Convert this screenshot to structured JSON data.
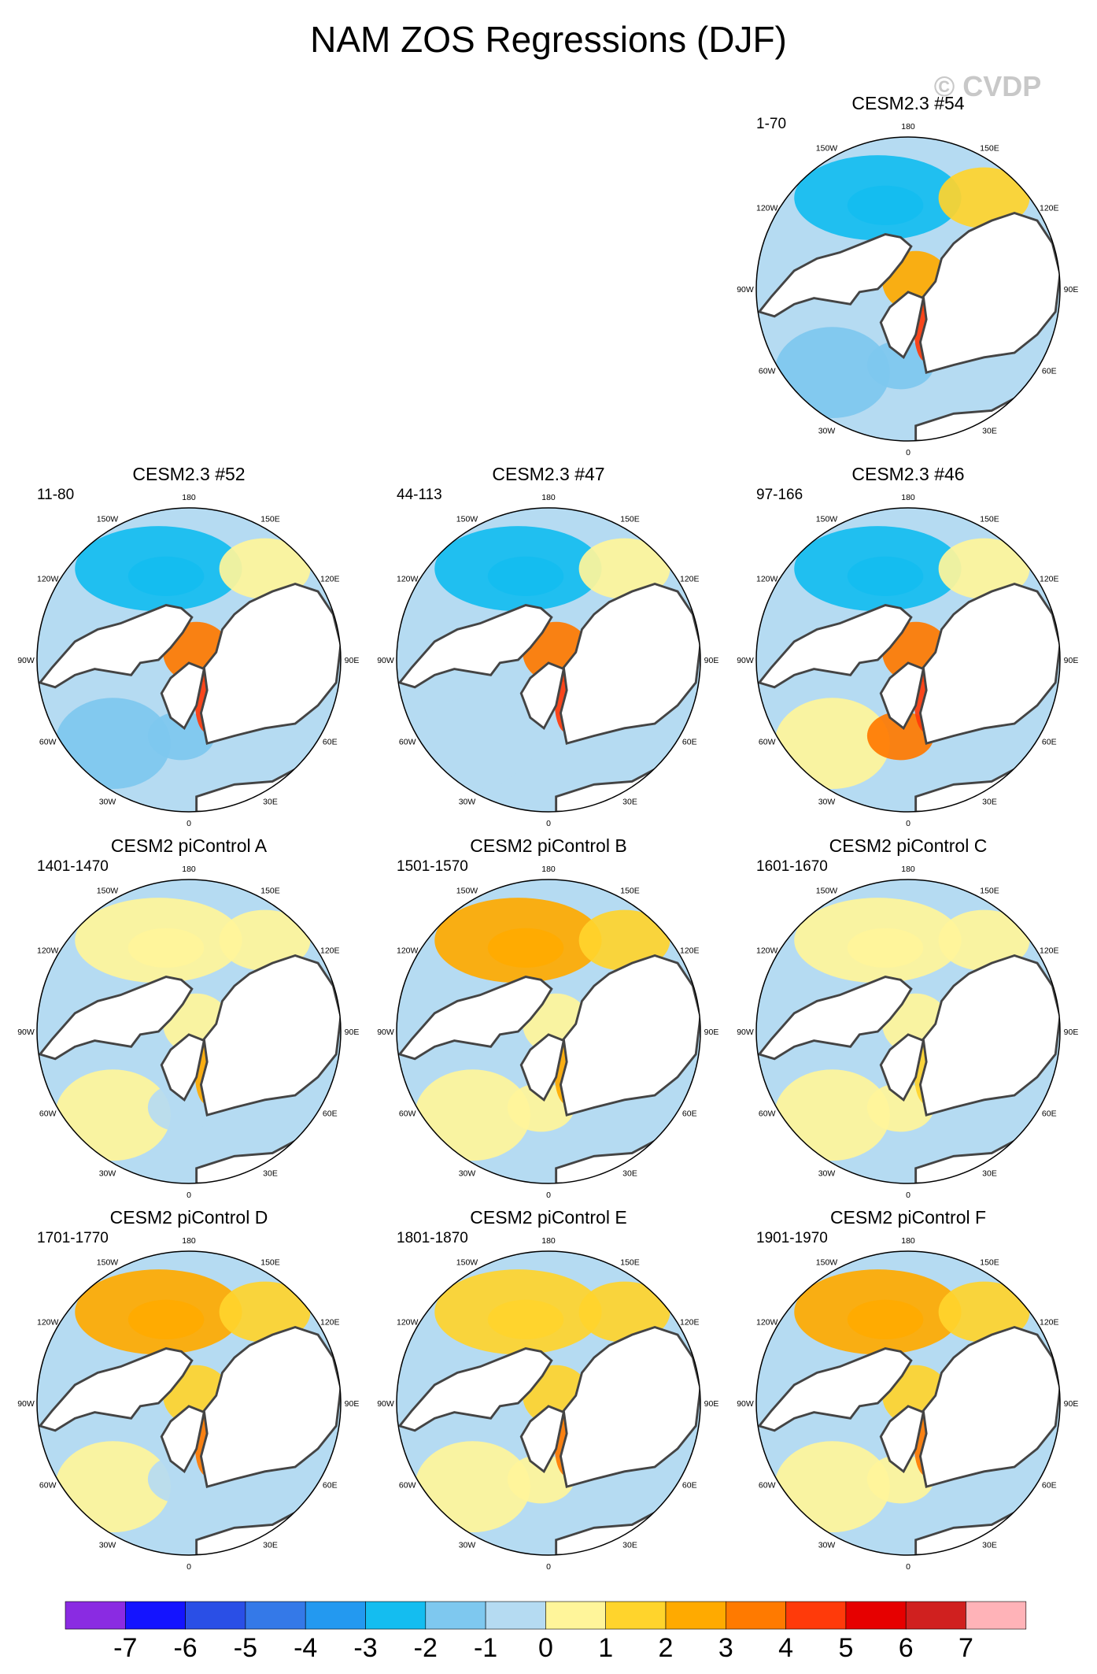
{
  "chart_data": {
    "type": "heatmap",
    "projection": "north-polar-stereographic",
    "title": "NAM ZOS Regressions (DJF)",
    "watermark": "© CVDP",
    "longitude_labels": [
      "180",
      "150E",
      "120E",
      "90E",
      "60E",
      "30E",
      "0",
      "30W",
      "60W",
      "90W",
      "120W",
      "150W"
    ],
    "colorbar": {
      "ticks": [
        "-7",
        "-6",
        "-5",
        "-4",
        "-3",
        "-2",
        "-1",
        "0",
        "1",
        "2",
        "3",
        "4",
        "5",
        "6",
        "7"
      ],
      "colors": [
        "#8a2be2",
        "#1414ff",
        "#2a4fe6",
        "#3479e8",
        "#2399f0",
        "#14bdf0",
        "#7ec8ef",
        "#b5dbf2",
        "#fff59a",
        "#ffd42c",
        "#ffaa00",
        "#ff7a00",
        "#ff3a0a",
        "#e60000",
        "#d0201f",
        "#ffb3b8"
      ]
    },
    "panels": [
      {
        "title": "CESM2.3 #54",
        "period": "1-70",
        "pattern": {
          "n_pac": -2.5,
          "ne_pac": 1.5,
          "n_atl": -2.0,
          "arctic": 2.0,
          "nordic": 4.0,
          "gulf": -1.5
        }
      },
      {
        "title": "CESM2.3 #52",
        "period": "11-80",
        "pattern": {
          "n_pac": -3.0,
          "ne_pac": 0.5,
          "n_atl": -1.5,
          "arctic": 3.0,
          "nordic": 4.0,
          "gulf": -1.5
        }
      },
      {
        "title": "CESM2.3 #47",
        "period": "44-113",
        "pattern": {
          "n_pac": -2.5,
          "ne_pac": 0.5,
          "n_atl": -1.0,
          "arctic": 3.0,
          "nordic": 4.0,
          "gulf": -1.0
        }
      },
      {
        "title": "CESM2.3 #46",
        "period": "97-166",
        "pattern": {
          "n_pac": -3.0,
          "ne_pac": 0.5,
          "n_atl": 0.5,
          "arctic": 3.0,
          "nordic": 4.0,
          "gulf": 3.0
        }
      },
      {
        "title": "CESM2 piControl A",
        "period": "1401-1470",
        "pattern": {
          "n_pac": 0.5,
          "ne_pac": 0.5,
          "n_atl": 0.5,
          "arctic": 0.5,
          "nordic": 2.0,
          "gulf": -0.5
        }
      },
      {
        "title": "CESM2 piControl B",
        "period": "1501-1570",
        "pattern": {
          "n_pac": 2.0,
          "ne_pac": 1.5,
          "n_atl": 0.5,
          "arctic": 0.5,
          "nordic": 2.5,
          "gulf": 0.5
        }
      },
      {
        "title": "CESM2 piControl C",
        "period": "1601-1670",
        "pattern": {
          "n_pac": 0.5,
          "ne_pac": 0.5,
          "n_atl": 0.5,
          "arctic": 0.5,
          "nordic": 1.5,
          "gulf": 0.5
        }
      },
      {
        "title": "CESM2 piControl D",
        "period": "1701-1770",
        "pattern": {
          "n_pac": 2.5,
          "ne_pac": 1.0,
          "n_atl": 0.5,
          "arctic": 1.5,
          "nordic": 3.0,
          "gulf": -0.5
        }
      },
      {
        "title": "CESM2 piControl E",
        "period": "1801-1870",
        "pattern": {
          "n_pac": 1.5,
          "ne_pac": 1.5,
          "n_atl": 0.5,
          "arctic": 1.5,
          "nordic": 3.0,
          "gulf": 0.5
        }
      },
      {
        "title": "CESM2 piControl F",
        "period": "1901-1970",
        "pattern": {
          "n_pac": 2.5,
          "ne_pac": 1.5,
          "n_atl": 0.5,
          "arctic": 1.5,
          "nordic": 3.0,
          "gulf": 0.5
        }
      }
    ]
  }
}
